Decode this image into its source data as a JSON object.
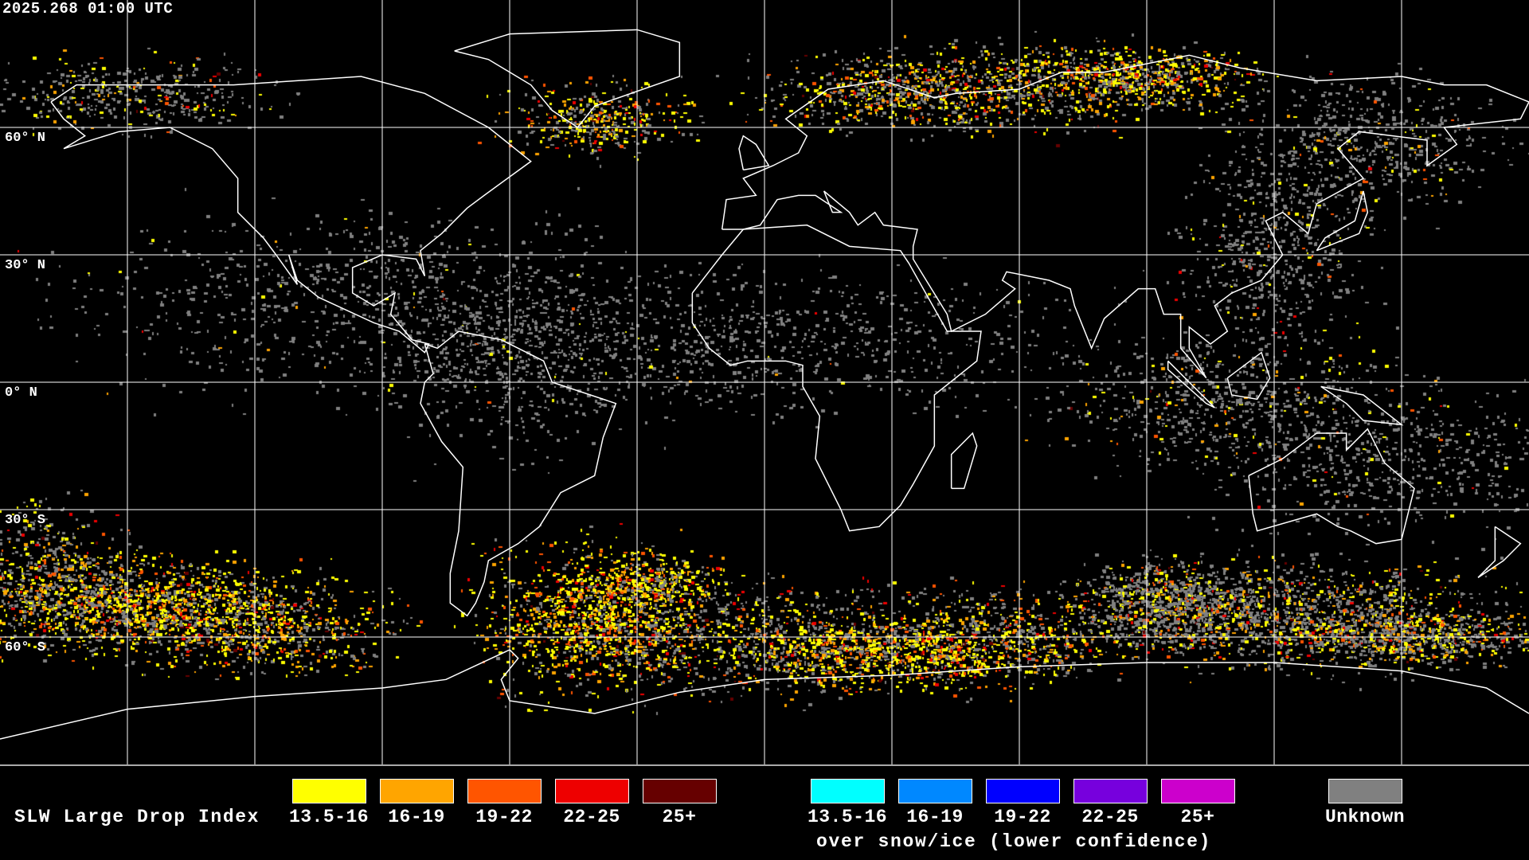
{
  "header": {
    "timestamp": "2025.268 01:00 UTC"
  },
  "map": {
    "projection": "equirectangular",
    "grid_spacing_deg": 30,
    "lat_labels": [
      "60° N",
      "30° N",
      "0° N",
      "30° S",
      "60° S"
    ],
    "colors": {
      "coastline": "#ffffff",
      "grid": "#ffffff",
      "background": "#000000"
    }
  },
  "legend": {
    "title": "SLW Large Drop Index",
    "liquid": [
      {
        "label": "13.5-16",
        "color": "#ffff00"
      },
      {
        "label": "16-19",
        "color": "#ffa500"
      },
      {
        "label": "19-22",
        "color": "#ff5500"
      },
      {
        "label": "22-25",
        "color": "#ee0000"
      },
      {
        "label": "25+",
        "color": "#660000"
      }
    ],
    "snow_ice": [
      {
        "label": "13.5-16",
        "color": "#00ffff"
      },
      {
        "label": "16-19",
        "color": "#0088ff"
      },
      {
        "label": "19-22",
        "color": "#0000ff"
      },
      {
        "label": "22-25",
        "color": "#7700dd"
      },
      {
        "label": "25+",
        "color": "#cc00cc"
      }
    ],
    "snow_ice_caption": "over snow/ice (lower confidence)",
    "unknown": {
      "label": "Unknown",
      "color": "#808080"
    }
  }
}
